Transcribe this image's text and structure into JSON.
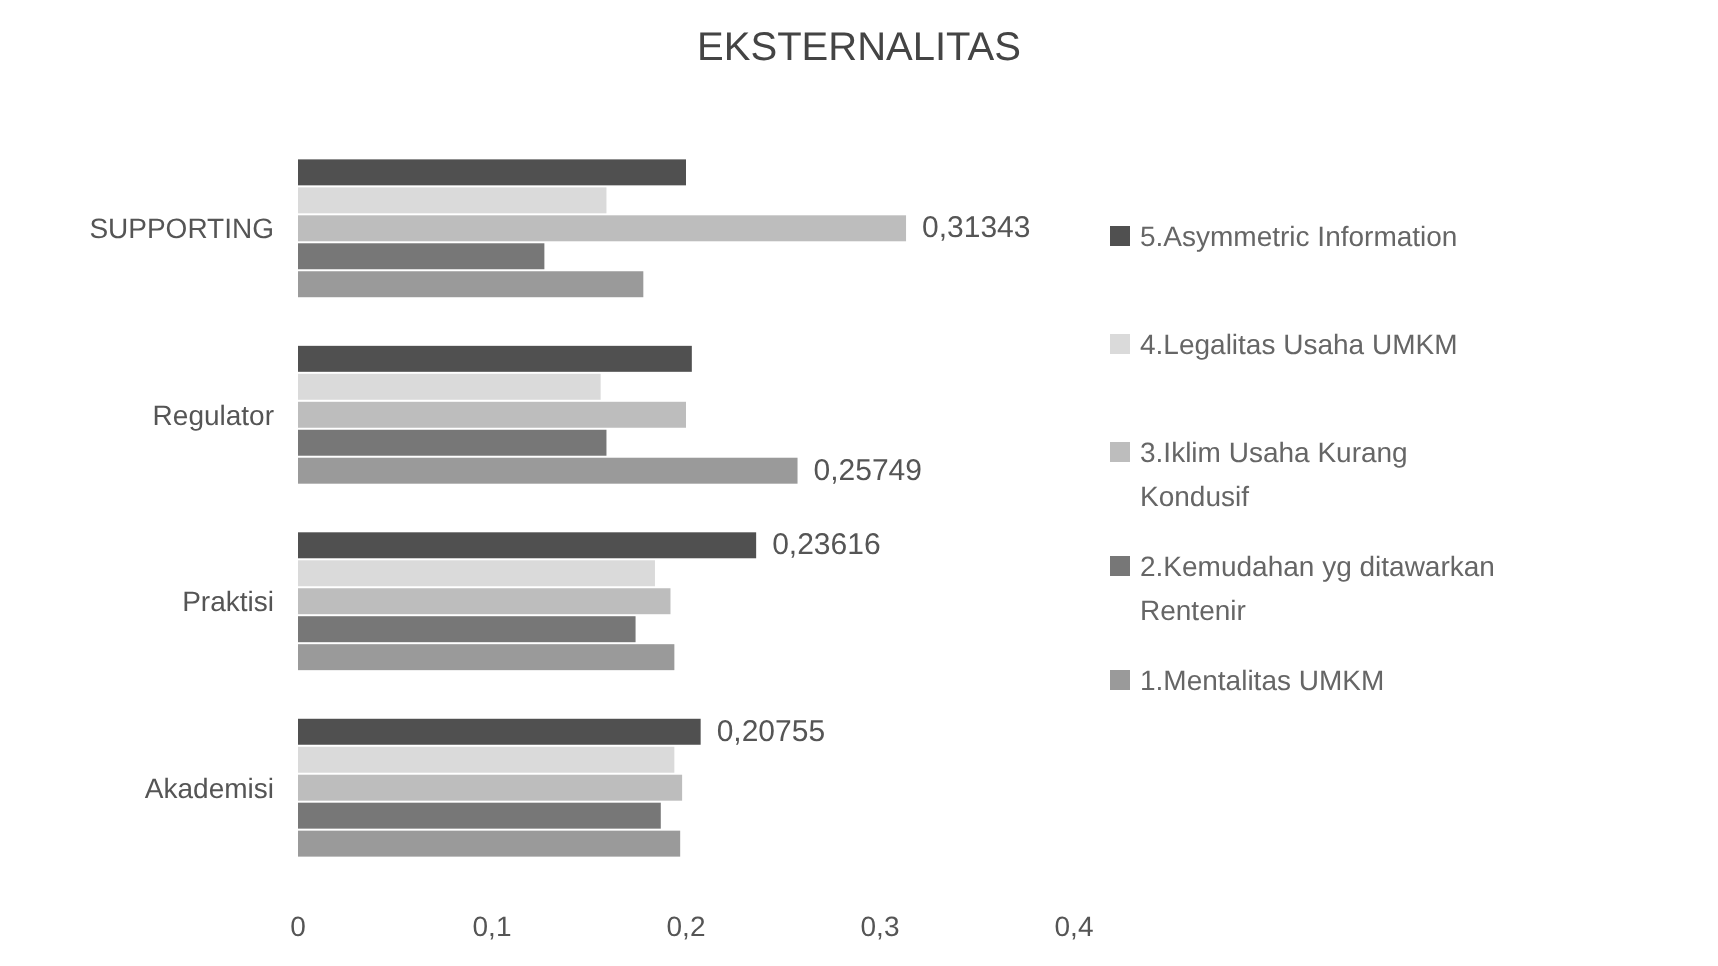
{
  "chart_data": {
    "type": "bar",
    "orientation": "horizontal",
    "title": "EKSTERNALITAS",
    "categories": [
      "SUPPORTING",
      "Regulator",
      "Praktisi",
      "Akademisi"
    ],
    "series": [
      {
        "name": "1.Mentalitas UMKM",
        "color": "#9a9a9a",
        "values": [
          0.178,
          0.25749,
          0.194,
          0.197
        ],
        "value_labels": [
          null,
          "0,25749",
          null,
          null
        ]
      },
      {
        "name": "2.Kemudahan yg ditawarkan Rentenir",
        "color": "#777777",
        "values": [
          0.127,
          0.159,
          0.174,
          0.187
        ]
      },
      {
        "name": "3.Iklim Usaha Kurang Kondusif",
        "color": "#bdbdbd",
        "values": [
          0.31343,
          0.2,
          0.192,
          0.198
        ],
        "value_labels": [
          "0,31343",
          null,
          null,
          null
        ]
      },
      {
        "name": "4.Legalitas Usaha UMKM",
        "color": "#dadada",
        "values": [
          0.159,
          0.156,
          0.184,
          0.194
        ]
      },
      {
        "name": "5.Asymmetric Information",
        "color": "#505050",
        "values": [
          0.2,
          0.203,
          0.23616,
          0.20755
        ],
        "value_labels": [
          null,
          null,
          "0,23616",
          "0,20755"
        ]
      }
    ],
    "xlim": [
      0,
      0.4
    ],
    "xticks": [
      0,
      {
        "value": 0.1,
        "label": "0,1"
      },
      {
        "value": 0.2,
        "label": "0,2"
      },
      {
        "value": 0.3,
        "label": "0,3"
      },
      {
        "value": 0.4,
        "label": "0,4"
      }
    ],
    "legend": "right"
  }
}
